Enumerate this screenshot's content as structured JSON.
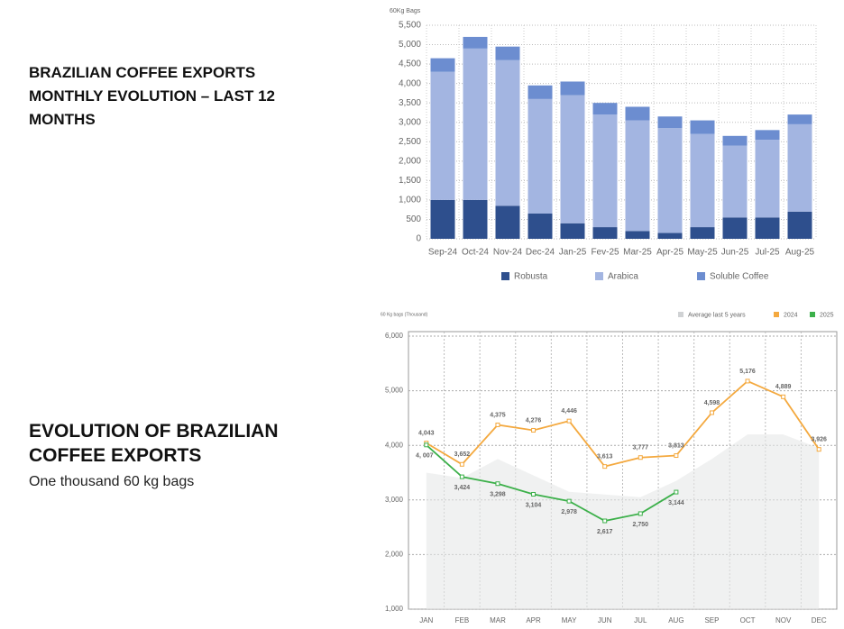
{
  "chart_data": [
    {
      "type": "bar",
      "stacked": true,
      "title": "BRAZILIAN COFFEE EXPORTS MONTHLY EVOLUTION – LAST 12 MONTHS",
      "y_label": "60Kg Bags",
      "categories": [
        "Sep-24",
        "Oct-24",
        "Nov-24",
        "Dec-24",
        "Jan-25",
        "Fev-25",
        "Mar-25",
        "Apr-25",
        "May-25",
        "Jun-25",
        "Jul-25",
        "Aug-25"
      ],
      "series": [
        {
          "name": "Robusta",
          "color": "#2e4f8d",
          "values": [
            1000,
            1000,
            850,
            650,
            400,
            300,
            200,
            150,
            300,
            550,
            550,
            700
          ]
        },
        {
          "name": "Arabica",
          "color": "#a3b5e1",
          "values": [
            3300,
            3900,
            3750,
            2950,
            3300,
            2900,
            2850,
            2700,
            2400,
            1850,
            2000,
            2250
          ]
        },
        {
          "name": "Soluble Coffee",
          "color": "#6c8dd0",
          "values": [
            350,
            300,
            350,
            350,
            350,
            300,
            350,
            300,
            350,
            250,
            250,
            250
          ]
        }
      ],
      "ylim": [
        0,
        5500
      ],
      "yticks": [
        0,
        500,
        {
          "value": 1000,
          "label": "1,000"
        },
        {
          "value": 1500,
          "label": "1,500"
        },
        {
          "value": 2000,
          "label": "2,000"
        },
        {
          "value": 2500,
          "label": "2,500"
        },
        {
          "value": 3000,
          "label": "3,000"
        },
        {
          "value": 3500,
          "label": "3,500"
        },
        {
          "value": 4000,
          "label": "4,000"
        },
        {
          "value": 4500,
          "label": "4,500"
        },
        {
          "value": 5000,
          "label": "5,000"
        },
        {
          "value": 5500,
          "label": "5,500"
        }
      ],
      "grid": true,
      "legend": "bottom"
    },
    {
      "type": "line",
      "title": "EVOLUTION OF BRAZILIAN COFFEE EXPORTS",
      "subtitle": "One thousand 60 kg bags",
      "y_label": "60 Kg bags (Thousand)",
      "categories": [
        "JAN",
        "FEB",
        "MAR",
        "APR",
        "MAY",
        "JUN",
        "JUL",
        "AUG",
        "SEP",
        "OCT",
        "NOV",
        "DEC"
      ],
      "series": [
        {
          "name": "Average last 5 years",
          "color": "#e6e7e8",
          "type": "area",
          "values": [
            3500,
            3400,
            3750,
            3450,
            3150,
            3100,
            3050,
            3350,
            3750,
            4200,
            4200,
            3950
          ]
        },
        {
          "name": "2024",
          "color": "#f4a93f",
          "values": [
            4043,
            3652,
            4375,
            4276,
            4446,
            3613,
            3777,
            3813,
            4598,
            5176,
            4889,
            3926
          ],
          "value_labels": [
            "4,043",
            "3,652",
            "4,375",
            "4,276",
            "4,446",
            "3,613",
            "3,777",
            "3,813",
            "4,598",
            "5,176",
            "4,889",
            "3,926"
          ]
        },
        {
          "name": "2025",
          "color": "#3cb04a",
          "values": [
            4007,
            3424,
            3298,
            3104,
            2978,
            2617,
            2750,
            3144,
            null,
            null,
            null,
            null
          ],
          "value_labels": [
            "4, 007",
            "3,424",
            "3,298",
            "3,104",
            "2,978",
            "2,617",
            "2,750",
            "3,144",
            null,
            null,
            null,
            null
          ]
        }
      ],
      "ylim": [
        1000,
        6000
      ],
      "yticks": [
        {
          "value": 1000,
          "label": "1,000"
        },
        {
          "value": 2000,
          "label": "2,000"
        },
        {
          "value": 3000,
          "label": "3,000"
        },
        {
          "value": 4000,
          "label": "4,000"
        },
        {
          "value": 5000,
          "label": "5,000"
        },
        {
          "value": 6000,
          "label": "6,000"
        }
      ],
      "grid": true,
      "legend": "top-right"
    }
  ]
}
